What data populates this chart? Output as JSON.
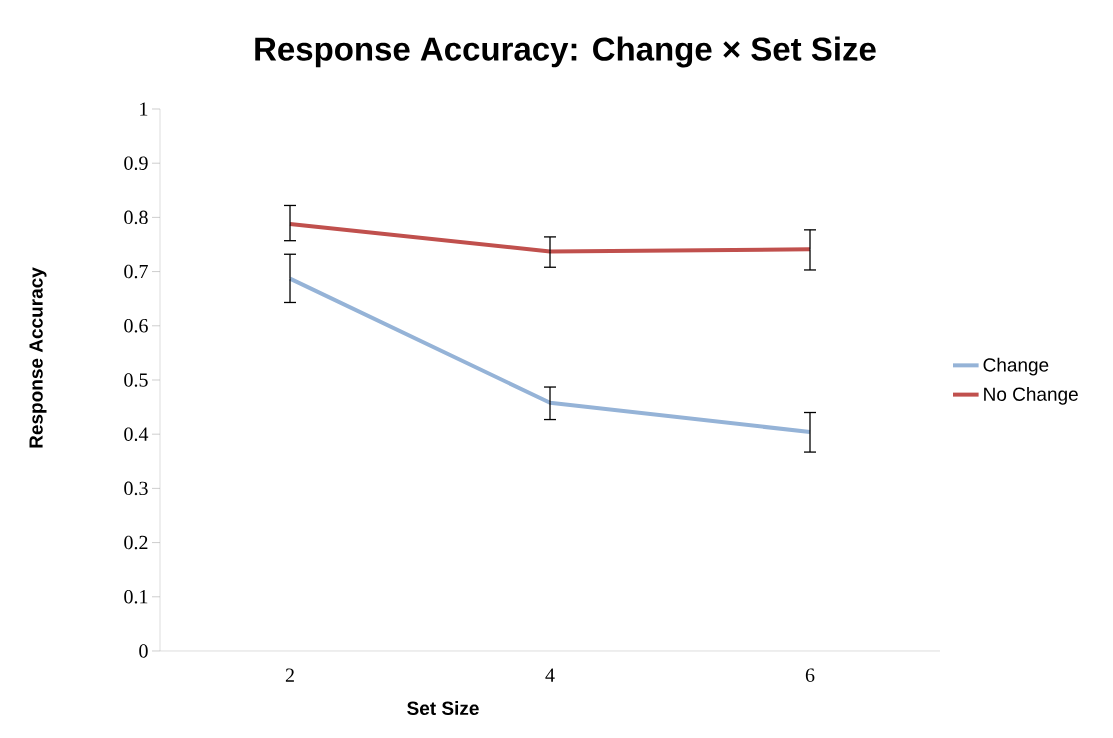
{
  "chart_data": {
    "type": "line",
    "title": "Response Accuracy: Change × Set Size",
    "xlabel": "Set Size",
    "ylabel": "Response Accuracy",
    "categories": [
      "2",
      "4",
      "6"
    ],
    "series": [
      {
        "name": "Change",
        "color": "#95b3d7",
        "values": [
          0.687,
          0.458,
          0.404
        ],
        "errors": [
          [
            0.643,
            0.732
          ],
          [
            0.427,
            0.487
          ],
          [
            0.367,
            0.44
          ]
        ]
      },
      {
        "name": "No Change",
        "color": "#c0504d",
        "values": [
          0.788,
          0.737,
          0.741
        ],
        "errors": [
          [
            0.757,
            0.822
          ],
          [
            0.708,
            0.764
          ],
          [
            0.703,
            0.777
          ]
        ]
      }
    ],
    "ylim": [
      0,
      1
    ],
    "yticks": [
      0,
      0.1,
      0.2,
      0.3,
      0.4,
      0.5,
      0.6,
      0.7,
      0.8,
      0.9,
      1
    ],
    "legend": "right"
  }
}
